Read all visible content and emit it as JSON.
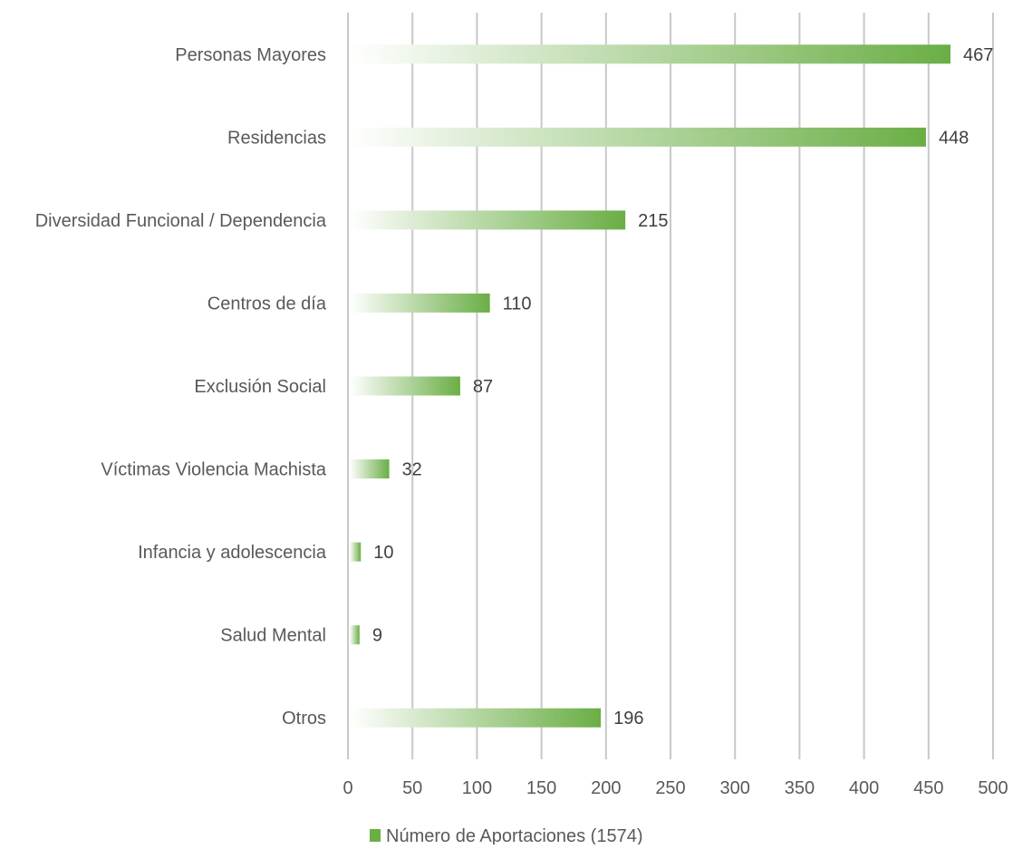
{
  "chart_data": {
    "type": "bar",
    "orientation": "horizontal",
    "categories": [
      "Personas Mayores",
      "Residencias",
      "Diversidad Funcional / Dependencia",
      "Centros de día",
      "Exclusión Social",
      "Víctimas Violencia Machista",
      "Infancia y adolescencia",
      "Salud Mental",
      "Otros"
    ],
    "series": [
      {
        "name": "Número de Aportaciones (1574)",
        "values": [
          467,
          448,
          215,
          110,
          87,
          32,
          10,
          9,
          196
        ]
      }
    ],
    "xlim": [
      0,
      500
    ],
    "xticks": [
      0,
      50,
      100,
      150,
      200,
      250,
      300,
      350,
      400,
      450,
      500
    ],
    "grid": "vertical",
    "legend_position": "bottom-center",
    "colors": {
      "bar_start": "#ffffff",
      "bar_end": "#6aae45",
      "gridline": "#c8c8c8",
      "text": "#595959"
    }
  }
}
